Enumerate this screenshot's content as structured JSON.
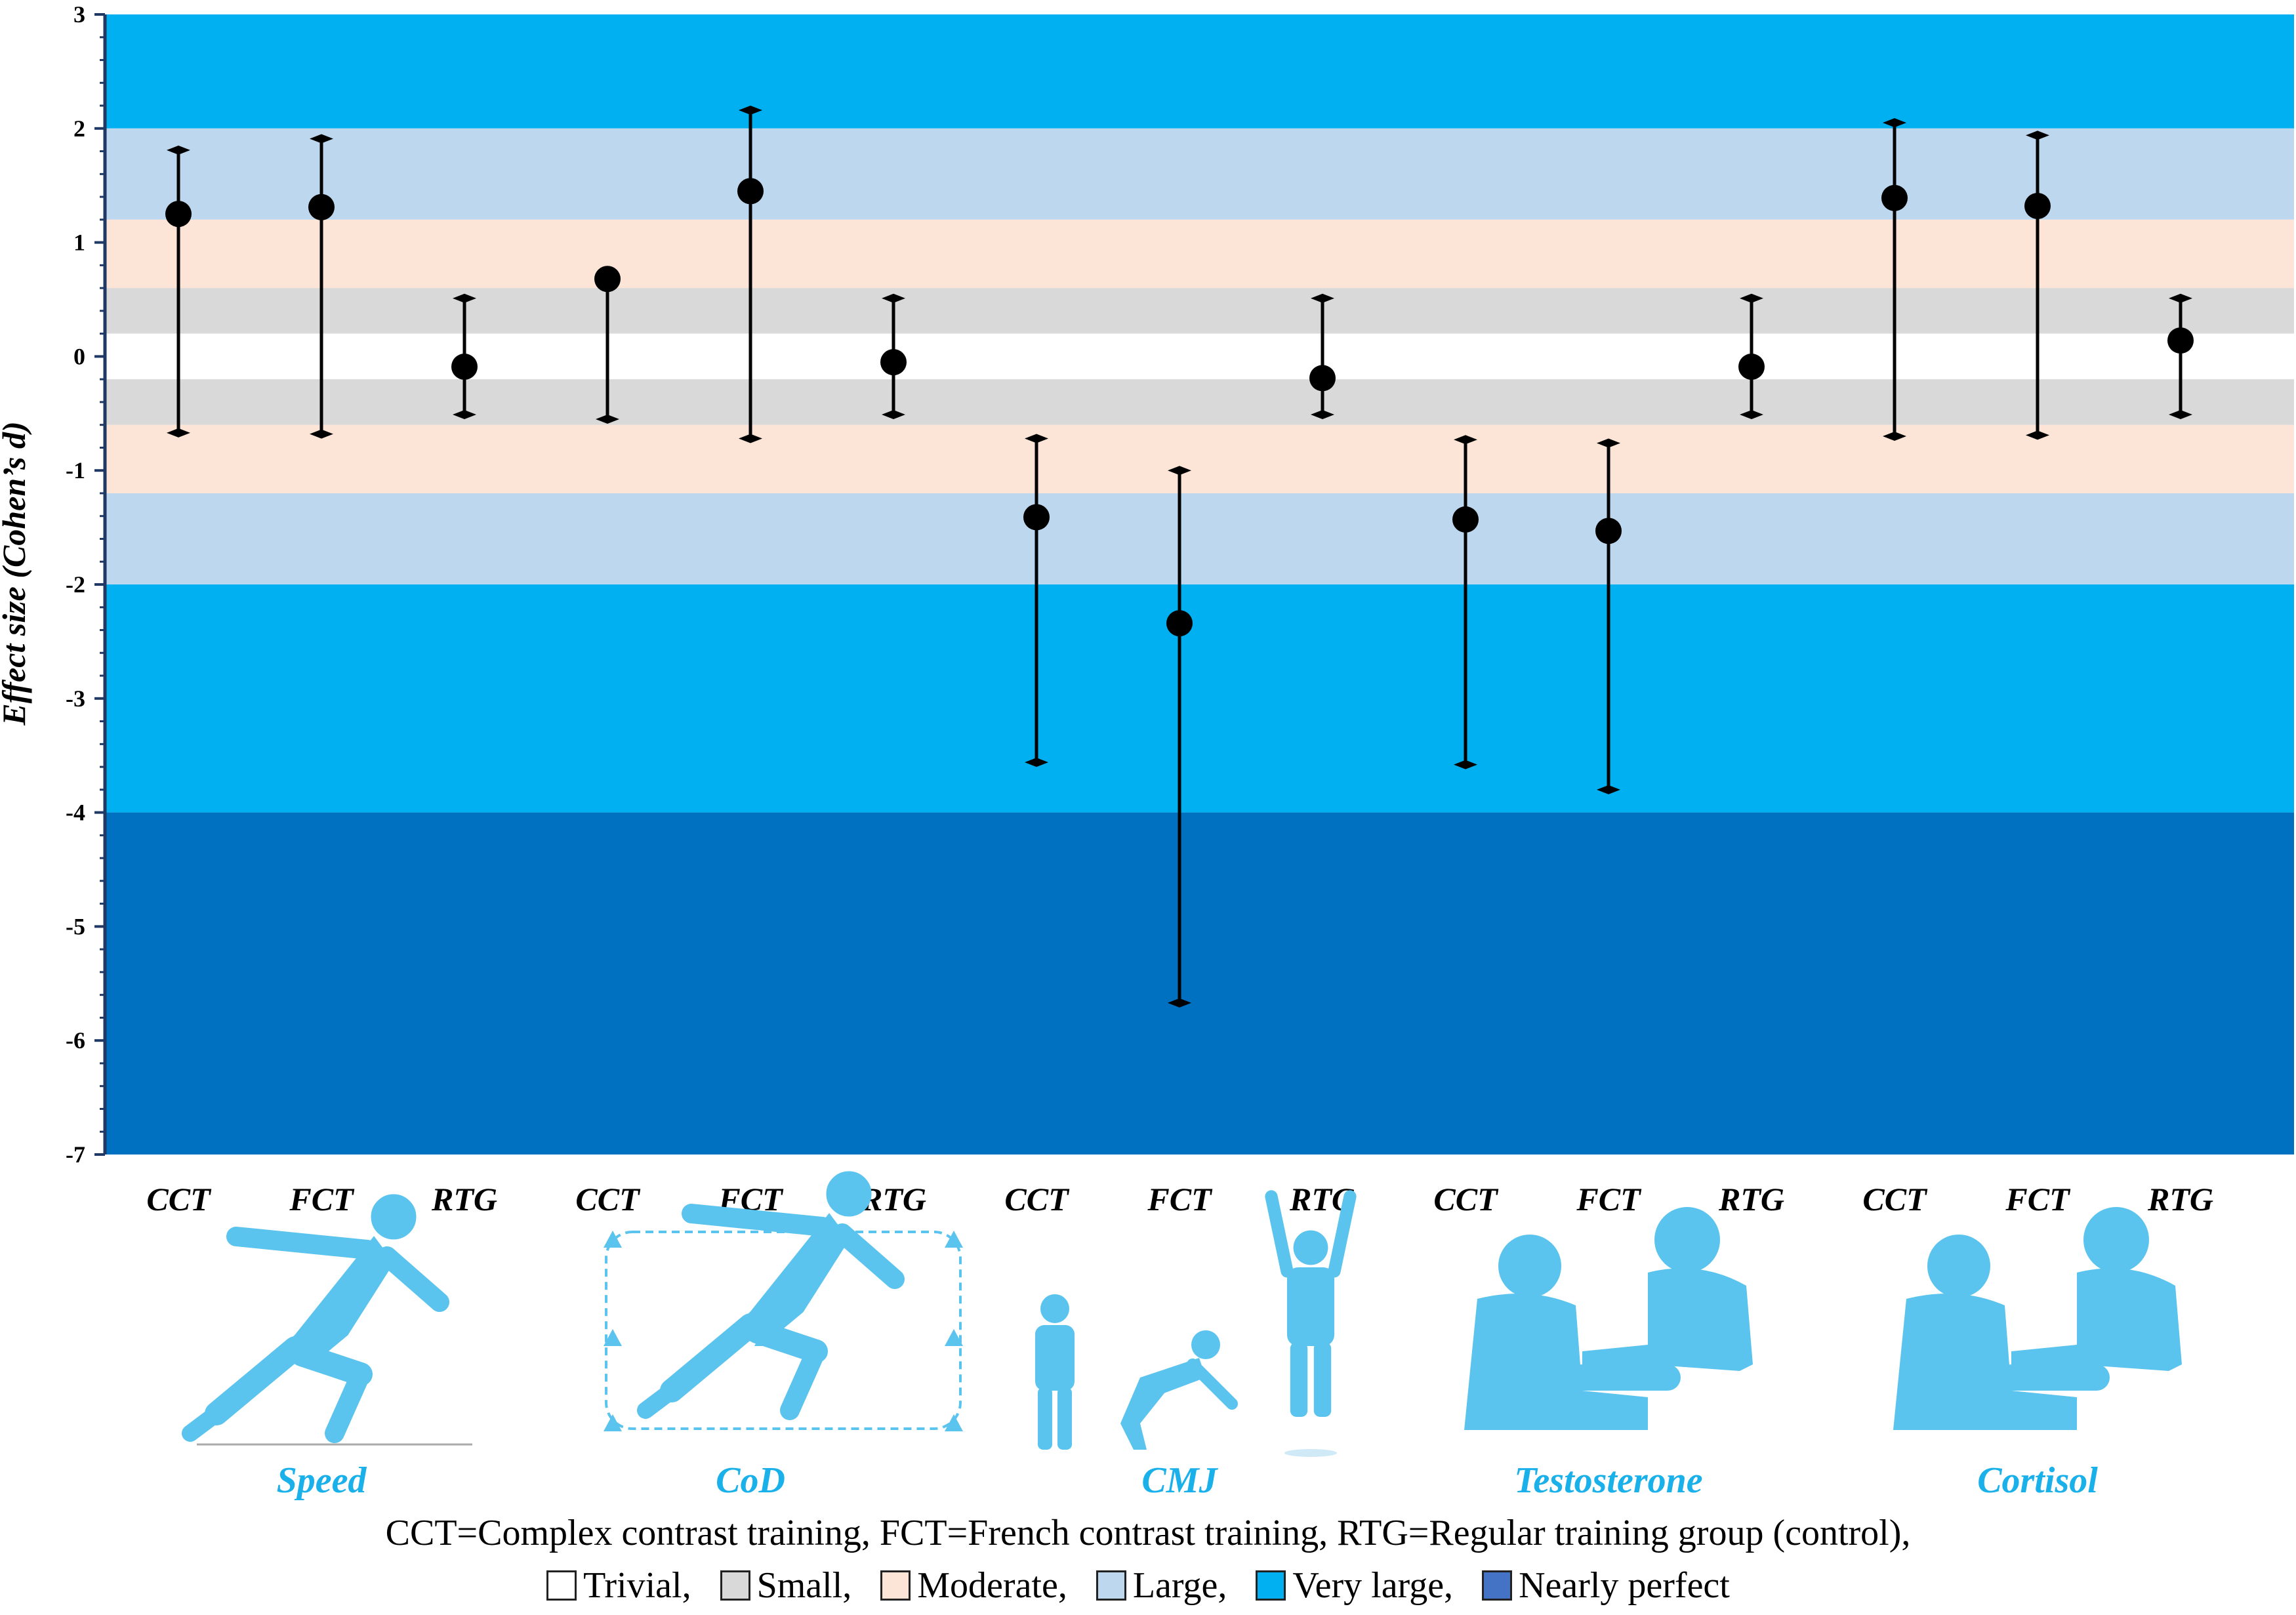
{
  "chart_data": {
    "type": "errorbar",
    "ylabel": "Effect size (Cohen’s d)",
    "ylim": [
      -7,
      3
    ],
    "yticks": [
      3,
      2,
      1,
      0,
      -1,
      -2,
      -3,
      -4,
      -5,
      -6,
      -7
    ],
    "bands": [
      {
        "from": 2.0,
        "to": 3.0,
        "color": "#00b0f0"
      },
      {
        "from": 1.2,
        "to": 2.0,
        "color": "#bdd7ee"
      },
      {
        "from": 0.6,
        "to": 1.2,
        "color": "#fce4d6"
      },
      {
        "from": 0.2,
        "to": 0.6,
        "color": "#d9d9d9"
      },
      {
        "from": -0.2,
        "to": 0.2,
        "color": "#ffffff"
      },
      {
        "from": -0.6,
        "to": -0.2,
        "color": "#d9d9d9"
      },
      {
        "from": -1.2,
        "to": -0.6,
        "color": "#fce4d6"
      },
      {
        "from": -2.0,
        "to": -1.2,
        "color": "#bdd7ee"
      },
      {
        "from": -4.0,
        "to": -2.0,
        "color": "#00b0f0"
      },
      {
        "from": -7.0,
        "to": -4.0,
        "color": "#0070c0"
      }
    ],
    "points": [
      {
        "outcome": "Speed",
        "group": "CCT",
        "d": 1.25,
        "lower": -0.67,
        "upper": 1.81
      },
      {
        "outcome": "Speed",
        "group": "FCT",
        "d": 1.31,
        "lower": -0.68,
        "upper": 1.91
      },
      {
        "outcome": "Speed",
        "group": "RTG",
        "d": -0.09,
        "lower": -0.51,
        "upper": 0.51
      },
      {
        "outcome": "CoD",
        "group": "CCT",
        "d": 0.68,
        "lower": -0.55,
        "upper": null
      },
      {
        "outcome": "CoD",
        "group": "FCT",
        "d": 1.45,
        "lower": -0.72,
        "upper": 2.16
      },
      {
        "outcome": "CoD",
        "group": "RTG",
        "d": -0.05,
        "lower": -0.51,
        "upper": 0.51
      },
      {
        "outcome": "CMJ",
        "group": "CCT",
        "d": -1.41,
        "lower": -3.56,
        "upper": -0.72
      },
      {
        "outcome": "CMJ",
        "group": "FCT",
        "d": -2.34,
        "lower": -5.67,
        "upper": -1.0
      },
      {
        "outcome": "CMJ",
        "group": "RTG",
        "d": -0.19,
        "lower": -0.51,
        "upper": 0.51
      },
      {
        "outcome": "Testosterone",
        "group": "CCT",
        "d": -1.43,
        "lower": -3.58,
        "upper": -0.73
      },
      {
        "outcome": "Testosterone",
        "group": "FCT",
        "d": -1.53,
        "lower": -3.8,
        "upper": -0.76
      },
      {
        "outcome": "Testosterone",
        "group": "RTG",
        "d": -0.09,
        "lower": -0.51,
        "upper": 0.51
      },
      {
        "outcome": "Cortisol",
        "group": "CCT",
        "d": 1.39,
        "lower": -0.7,
        "upper": 2.05
      },
      {
        "outcome": "Cortisol",
        "group": "FCT",
        "d": 1.32,
        "lower": -0.69,
        "upper": 1.94
      },
      {
        "outcome": "Cortisol",
        "group": "RTG",
        "d": 0.14,
        "lower": -0.51,
        "upper": 0.51
      }
    ],
    "group_labels": [
      "CCT",
      "FCT",
      "RTG",
      "CCT",
      "FCT",
      "RTG",
      "CCT",
      "FCT",
      "RTG",
      "CCT",
      "FCT",
      "RTG",
      "CCT",
      "FCT",
      "RTG"
    ],
    "outcomes": [
      {
        "label": "Speed",
        "icon": "sprinter-icon"
      },
      {
        "label": "CoD",
        "icon": "change-of-direction-icon"
      },
      {
        "label": "CMJ",
        "icon": "jump-icon"
      },
      {
        "label": "Testosterone",
        "icon": "blood-test-icon"
      },
      {
        "label": "Cortisol",
        "icon": "blood-test-icon"
      }
    ]
  },
  "footnote": "CCT=Complex contrast training, FCT=French contrast training, RTG=Regular training group (control),",
  "legend": [
    {
      "label": "Trivial,",
      "color": "#ffffff"
    },
    {
      "label": "Small,",
      "color": "#d9d9d9"
    },
    {
      "label": "Moderate,",
      "color": "#fce4d6"
    },
    {
      "label": "Large,",
      "color": "#bdd7ee"
    },
    {
      "label": "Very large,",
      "color": "#00b0f0"
    },
    {
      "label": "Nearly perfect",
      "color": "#4472c4"
    }
  ]
}
